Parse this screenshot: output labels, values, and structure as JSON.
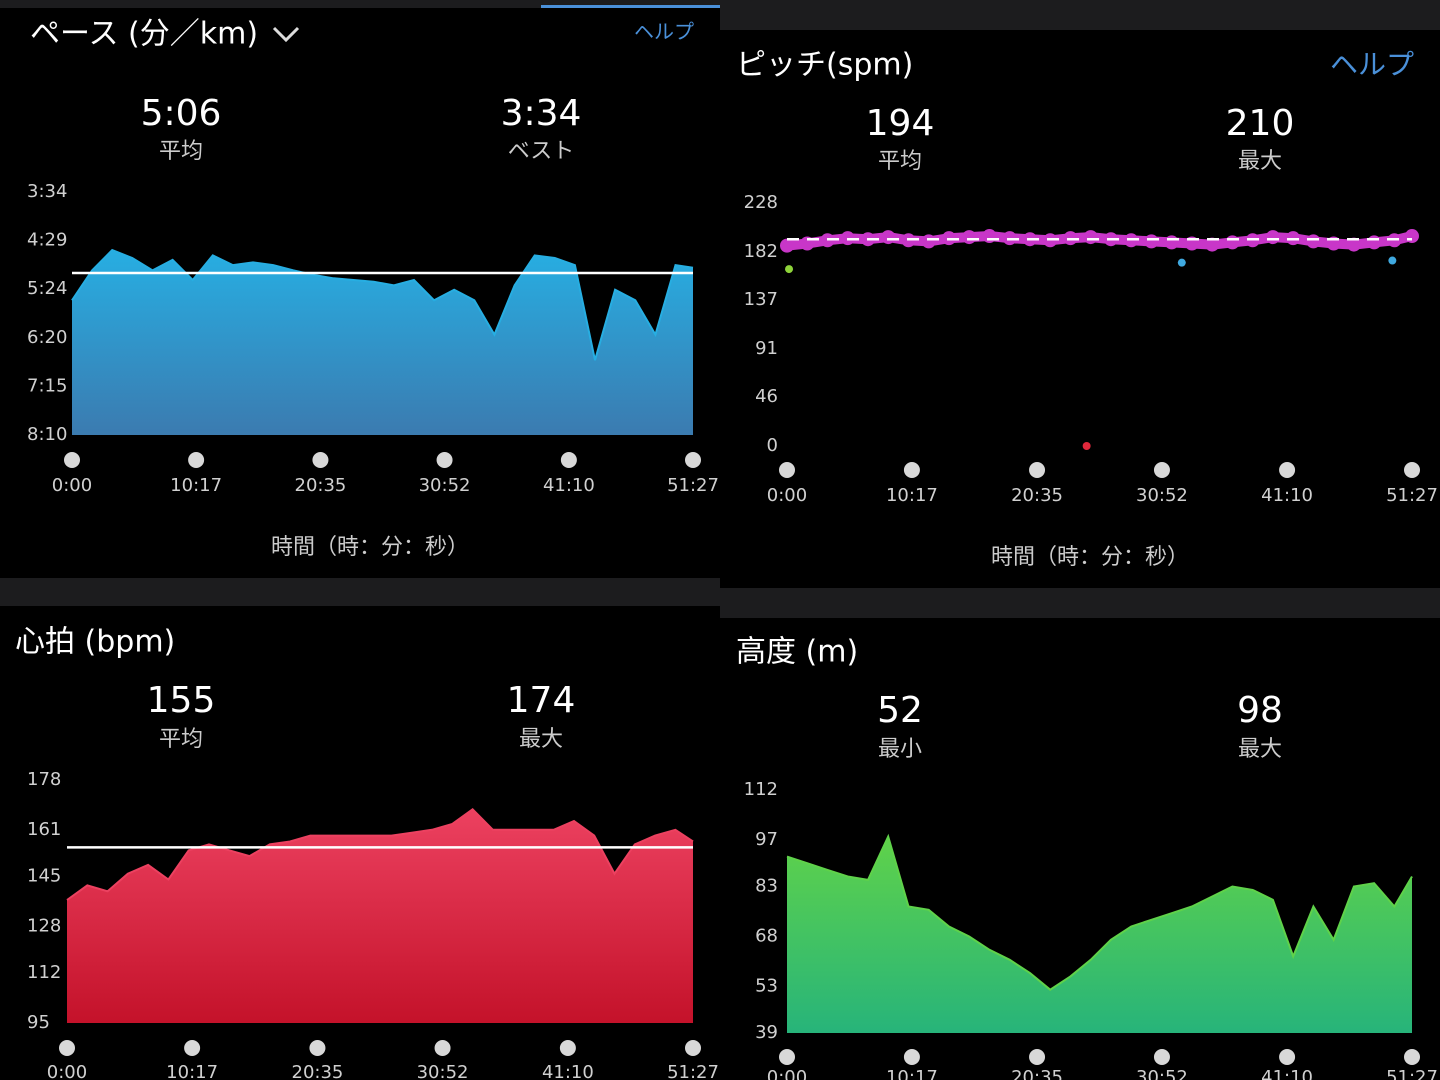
{
  "chart_data": [
    {
      "type": "area",
      "title": "ペース (分／km)",
      "help": "ヘルプ",
      "stats": [
        {
          "value": 306,
          "label": "5:06",
          "caption": "平均"
        },
        {
          "value": 214,
          "label": "3:34",
          "caption": "ベスト"
        }
      ],
      "reference_line": "solid",
      "ylim": [
        490,
        214
      ],
      "yticks": [
        {
          "value": 214,
          "label": "3:34"
        },
        {
          "value": 269,
          "label": "4:29"
        },
        {
          "value": 324,
          "label": "5:24"
        },
        {
          "value": 380,
          "label": "6:20"
        },
        {
          "value": 435,
          "label": "7:15"
        },
        {
          "value": 490,
          "label": "8:10"
        }
      ],
      "xlim": [
        0,
        3087
      ],
      "xticks": [
        {
          "value": 0,
          "label": "0:00"
        },
        {
          "value": 617,
          "label": "10:17"
        },
        {
          "value": 1235,
          "label": "20:35"
        },
        {
          "value": 1852,
          "label": "30:52"
        },
        {
          "value": 2470,
          "label": "41:10"
        },
        {
          "value": 3087,
          "label": "51:27"
        }
      ],
      "xlabel": "時間（時：分：秒）",
      "x": [
        0,
        100,
        200,
        300,
        400,
        500,
        600,
        700,
        800,
        900,
        1000,
        1100,
        1200,
        1300,
        1400,
        1500,
        1600,
        1700,
        1800,
        1900,
        2000,
        2100,
        2200,
        2300,
        2400,
        2500,
        2600,
        2700,
        2800,
        2900,
        3000,
        3087
      ],
      "values": [
        337,
        303,
        280,
        289,
        303,
        291,
        314,
        286,
        297,
        294,
        297,
        303,
        308,
        312,
        314,
        316,
        320,
        314,
        337,
        325,
        337,
        376,
        320,
        286,
        289,
        297,
        405,
        325,
        337,
        376,
        297,
        300
      ],
      "gradient": [
        "#27aee2",
        "#3b7bb0"
      ]
    },
    {
      "type": "scatter",
      "title": "ピッチ(spm)",
      "help": "ヘルプ",
      "stats": [
        {
          "value": 194,
          "caption": "平均"
        },
        {
          "value": 210,
          "caption": "最大"
        }
      ],
      "reference_line": "dashed",
      "ylim": [
        0,
        228
      ],
      "yticks": [
        0,
        46,
        91,
        137,
        182,
        228
      ],
      "xlim": [
        0,
        3087
      ],
      "xticks": [
        {
          "value": 0,
          "label": "0:00"
        },
        {
          "value": 617,
          "label": "10:17"
        },
        {
          "value": 1235,
          "label": "20:35"
        },
        {
          "value": 1852,
          "label": "30:52"
        },
        {
          "value": 2470,
          "label": "41:10"
        },
        {
          "value": 3087,
          "label": "51:27"
        }
      ],
      "xlabel": "時間（時：分：秒）",
      "series": [
        {
          "color": "#c836c8",
          "x": [
            0,
            100,
            200,
            300,
            400,
            500,
            600,
            700,
            800,
            900,
            1000,
            1100,
            1200,
            1300,
            1400,
            1500,
            1600,
            1700,
            1800,
            1900,
            2000,
            2100,
            2200,
            2300,
            2400,
            2500,
            2600,
            2700,
            2800,
            2900,
            3000,
            3087
          ],
          "values": [
            188,
            190,
            193,
            195,
            194,
            196,
            193,
            192,
            195,
            196,
            197,
            195,
            194,
            193,
            195,
            196,
            194,
            193,
            192,
            191,
            190,
            189,
            191,
            193,
            196,
            195,
            192,
            190,
            189,
            191,
            193,
            197
          ]
        },
        {
          "color": "#3fa9e0",
          "x": [
            1950,
            2990
          ],
          "values": [
            172,
            174
          ]
        },
        {
          "color": "#8ed33a",
          "x": [
            10
          ],
          "values": [
            166
          ]
        },
        {
          "color": "#e0283b",
          "x": [
            1480
          ],
          "values": [
            0
          ]
        }
      ]
    },
    {
      "type": "area",
      "title": "心拍 (bpm)",
      "stats": [
        {
          "value": 155,
          "caption": "平均"
        },
        {
          "value": 174,
          "caption": "最大"
        }
      ],
      "reference_line": "solid",
      "ylim": [
        95,
        178
      ],
      "yticks": [
        95,
        112,
        128,
        145,
        161,
        178
      ],
      "xlim": [
        0,
        3087
      ],
      "xticks": [
        {
          "value": 0,
          "label": "0:00"
        },
        {
          "value": 617,
          "label": "10:17"
        },
        {
          "value": 1235,
          "label": "20:35"
        },
        {
          "value": 1852,
          "label": "30:52"
        },
        {
          "value": 2470,
          "label": "41:10"
        },
        {
          "value": 3087,
          "label": "51:27"
        }
      ],
      "x": [
        0,
        100,
        200,
        300,
        400,
        500,
        600,
        700,
        800,
        900,
        1000,
        1100,
        1200,
        1300,
        1400,
        1500,
        1600,
        1700,
        1800,
        1900,
        2000,
        2100,
        2200,
        2300,
        2400,
        2500,
        2600,
        2700,
        2800,
        2900,
        3000,
        3087
      ],
      "values": [
        137,
        142,
        140,
        146,
        149,
        144,
        154,
        156,
        154,
        152,
        156,
        157,
        159,
        159,
        159,
        159,
        159,
        160,
        161,
        163,
        168,
        161,
        161,
        161,
        161,
        164,
        159,
        146,
        156,
        159,
        161,
        157
      ],
      "gradient": [
        "#ec4160",
        "#c4122a"
      ]
    },
    {
      "type": "area",
      "title": "高度 (m)",
      "stats": [
        {
          "value": 52,
          "caption": "最小"
        },
        {
          "value": 98,
          "caption": "最大"
        }
      ],
      "ylim": [
        39,
        112
      ],
      "yticks": [
        39,
        53,
        68,
        83,
        97,
        112
      ],
      "xlim": [
        0,
        3087
      ],
      "xticks": [
        {
          "value": 0,
          "label": "0:00"
        },
        {
          "value": 617,
          "label": "10:17"
        },
        {
          "value": 1235,
          "label": "20:35"
        },
        {
          "value": 1852,
          "label": "30:52"
        },
        {
          "value": 2470,
          "label": "41:10"
        },
        {
          "value": 3087,
          "label": "51:27"
        }
      ],
      "x": [
        0,
        100,
        200,
        300,
        400,
        500,
        600,
        700,
        800,
        900,
        1000,
        1100,
        1200,
        1300,
        1400,
        1500,
        1600,
        1700,
        1800,
        1900,
        2000,
        2100,
        2200,
        2300,
        2400,
        2500,
        2600,
        2700,
        2800,
        2900,
        3000,
        3087
      ],
      "values": [
        92,
        90,
        88,
        86,
        85,
        98,
        77,
        76,
        71,
        68,
        64,
        61,
        57,
        52,
        56,
        61,
        67,
        71,
        73,
        75,
        77,
        80,
        83,
        82,
        79,
        62,
        77,
        67,
        83,
        84,
        77,
        86
      ],
      "gradient": [
        "#5fd24a",
        "#27b47a"
      ]
    }
  ]
}
